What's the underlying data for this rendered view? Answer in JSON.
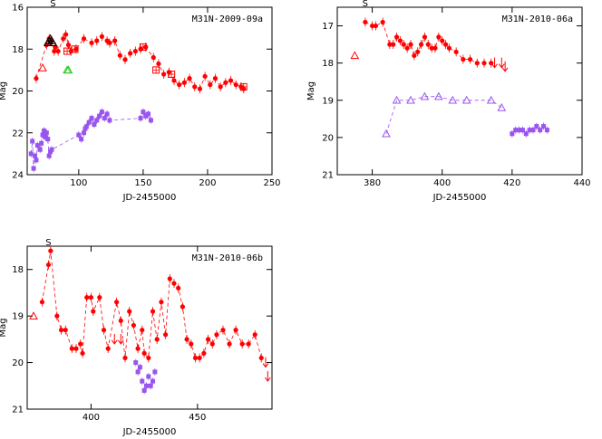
{
  "chart_data": [
    {
      "type": "scatter",
      "title": "M31N-2009-09a",
      "xlabel": "JD-2455000",
      "ylabel": "Mag",
      "xlim": [
        60,
        250
      ],
      "ylim": [
        24,
        16
      ],
      "xticks": [
        100,
        150,
        200,
        250
      ],
      "yticks": [
        16,
        18,
        20,
        22,
        24
      ],
      "s_label": "S",
      "s_x": 80,
      "series": [
        {
          "name": "red-detections",
          "color": "#ff0000",
          "marker": "dot",
          "connect": true,
          "x": [
            67,
            75,
            77,
            79,
            81,
            82,
            84,
            88,
            90,
            92,
            94,
            98,
            104,
            110,
            114,
            118,
            122,
            124,
            128,
            132,
            136,
            140,
            144,
            148,
            152,
            158,
            162,
            166,
            170,
            174,
            178,
            182,
            186,
            190,
            194,
            198,
            202,
            206,
            210,
            214,
            218,
            222,
            226,
            228
          ],
          "y": [
            19.4,
            17.8,
            17.5,
            17.6,
            18.1,
            17.9,
            18.1,
            17.5,
            17.3,
            17.8,
            18.1,
            18.0,
            17.5,
            17.7,
            17.6,
            17.4,
            17.6,
            17.7,
            17.6,
            18.3,
            18.5,
            18.2,
            18.1,
            18.0,
            17.9,
            18.4,
            18.7,
            19.2,
            19.1,
            19.5,
            19.7,
            19.6,
            19.4,
            19.8,
            19.9,
            19.3,
            19.7,
            19.4,
            19.8,
            19.6,
            19.5,
            19.7,
            19.8,
            19.9
          ]
        },
        {
          "name": "red-triangles",
          "color": "#ff0000",
          "marker": "triangle-open",
          "connect": false,
          "x": [
            72
          ],
          "y": [
            18.9
          ]
        },
        {
          "name": "red-squares",
          "color": "#ff0000",
          "marker": "square-cross",
          "connect": false,
          "x": [
            91,
            97,
            150,
            160,
            172,
            228
          ],
          "y": [
            18.1,
            18.0,
            17.9,
            19.0,
            19.2,
            19.8
          ]
        },
        {
          "name": "black-triangles",
          "color": "#000000",
          "marker": "triangle-open",
          "connect": false,
          "x": [
            76,
            77,
            78,
            79,
            80
          ],
          "y": [
            17.7,
            17.6,
            17.5,
            17.6,
            17.7
          ]
        },
        {
          "name": "green-triangles",
          "color": "#22cc22",
          "marker": "triangle-open",
          "connect": false,
          "x": [
            91,
            92
          ],
          "y": [
            19.0,
            19.0
          ]
        },
        {
          "name": "purple-squares",
          "color": "#9955ee",
          "marker": "square",
          "connect": true,
          "x": [
            63,
            64,
            65,
            66,
            67,
            68,
            70,
            71,
            72,
            73,
            74,
            75,
            76,
            77,
            78,
            79,
            100,
            102,
            104,
            105,
            106,
            108,
            110,
            112,
            114,
            116,
            118,
            120,
            122,
            124,
            148,
            150,
            152,
            154,
            156
          ],
          "y": [
            23.0,
            22.4,
            23.7,
            23.1,
            23.3,
            22.6,
            22.8,
            22.5,
            22.1,
            21.9,
            22.2,
            22.0,
            22.3,
            23.1,
            22.9,
            22.8,
            22.1,
            22.3,
            22.0,
            21.8,
            21.7,
            21.5,
            21.3,
            21.6,
            21.4,
            21.2,
            21.0,
            21.3,
            21.1,
            21.4,
            21.3,
            21.0,
            21.2,
            21.1,
            21.4
          ]
        }
      ]
    },
    {
      "type": "scatter",
      "title": "M31N-2010-06a",
      "xlabel": "JD-2455000",
      "ylabel": "Mag",
      "xlim": [
        370,
        440
      ],
      "ylim": [
        21,
        16.5
      ],
      "xticks": [
        380,
        400,
        420,
        440
      ],
      "yticks": [
        17,
        18,
        19,
        20,
        21
      ],
      "s_label": "S",
      "s_x": 378,
      "series": [
        {
          "name": "red-detections",
          "color": "#ff0000",
          "marker": "dot",
          "connect": true,
          "x": [
            378,
            380,
            381,
            383,
            385,
            386,
            387,
            388,
            389,
            390,
            391,
            392,
            393,
            394,
            395,
            396,
            397,
            398,
            399,
            400,
            401,
            402,
            404,
            406,
            408,
            410,
            412,
            414
          ],
          "y": [
            16.9,
            17.0,
            17.0,
            16.9,
            17.5,
            17.5,
            17.3,
            17.4,
            17.5,
            17.6,
            17.5,
            17.8,
            17.7,
            17.5,
            17.3,
            17.5,
            17.6,
            17.6,
            17.3,
            17.4,
            17.5,
            17.6,
            17.7,
            17.9,
            17.9,
            18.0,
            18.0,
            18.0
          ]
        },
        {
          "name": "red-upper-limits",
          "color": "#ff0000",
          "marker": "arrow-down",
          "connect": false,
          "x": [
            415,
            417,
            418
          ],
          "y": [
            18.0,
            18.0,
            18.1
          ]
        },
        {
          "name": "red-triangles",
          "color": "#ff0000",
          "marker": "triangle-open",
          "connect": false,
          "x": [
            375
          ],
          "y": [
            17.8
          ]
        },
        {
          "name": "purple-triangles",
          "color": "#9955ee",
          "marker": "triangle-open",
          "connect": true,
          "x": [
            384,
            387,
            391,
            395,
            399,
            403,
            407,
            414,
            417
          ],
          "y": [
            19.9,
            19.0,
            19.0,
            18.9,
            18.9,
            19.0,
            19.0,
            19.0,
            19.2
          ]
        },
        {
          "name": "purple-squares",
          "color": "#9955ee",
          "marker": "square",
          "connect": true,
          "x": [
            420,
            421,
            422,
            423,
            424,
            425,
            426,
            427,
            428,
            429,
            430
          ],
          "y": [
            19.9,
            19.8,
            19.8,
            19.8,
            19.9,
            19.8,
            19.8,
            19.7,
            19.8,
            19.7,
            19.8
          ]
        }
      ]
    },
    {
      "type": "scatter",
      "title": "M31N-2010-06b",
      "xlabel": "JD-2455000",
      "ylabel": "Mag",
      "xlim": [
        370,
        485
      ],
      "ylim": [
        21,
        17.5
      ],
      "xticks": [
        400,
        450
      ],
      "yticks": [
        18,
        19,
        20,
        21
      ],
      "s_label": "S",
      "s_x": 380,
      "series": [
        {
          "name": "red-detections",
          "color": "#ff0000",
          "marker": "dot",
          "connect": true,
          "x": [
            377,
            380,
            381,
            384,
            386,
            388,
            391,
            393,
            395,
            396,
            398,
            400,
            401,
            404,
            406,
            408,
            412,
            414,
            416,
            418,
            420,
            422,
            424,
            425,
            427,
            429,
            431,
            433,
            435,
            437,
            439,
            441,
            443,
            445,
            447,
            449,
            451,
            453,
            455,
            457,
            459,
            462,
            465,
            468,
            471,
            474,
            477,
            480
          ],
          "y": [
            18.7,
            17.9,
            17.6,
            19.0,
            19.3,
            19.3,
            19.7,
            19.7,
            19.6,
            19.8,
            18.6,
            18.6,
            18.9,
            18.6,
            19.3,
            19.7,
            18.7,
            19.1,
            19.9,
            18.9,
            19.2,
            19.7,
            19.3,
            19.8,
            19.9,
            18.9,
            19.5,
            18.7,
            19.4,
            18.2,
            18.3,
            18.4,
            18.8,
            19.5,
            19.6,
            19.9,
            19.9,
            19.8,
            19.5,
            19.6,
            19.4,
            19.3,
            19.6,
            19.3,
            19.6,
            19.6,
            19.4,
            19.9
          ]
        },
        {
          "name": "red-upper-limits",
          "color": "#ff0000",
          "marker": "arrow-down",
          "connect": false,
          "x": [
            411,
            414,
            482,
            483
          ],
          "y": [
            19.5,
            19.5,
            20.0,
            20.3
          ]
        },
        {
          "name": "red-triangles",
          "color": "#ff0000",
          "marker": "triangle-open",
          "connect": false,
          "x": [
            373
          ],
          "y": [
            19.0
          ]
        },
        {
          "name": "purple-squares",
          "color": "#9955ee",
          "marker": "square",
          "connect": false,
          "x": [
            421,
            422,
            423,
            424,
            425,
            426,
            427,
            428,
            429,
            430
          ],
          "y": [
            20.0,
            20.2,
            20.1,
            20.4,
            20.6,
            20.5,
            20.3,
            20.5,
            20.4,
            20.2
          ]
        }
      ]
    }
  ]
}
